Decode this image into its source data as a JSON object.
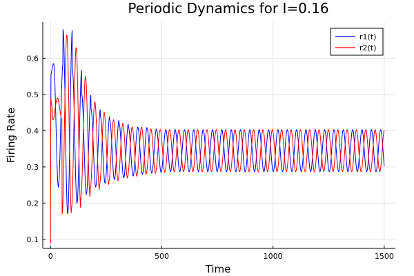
{
  "chart_data": {
    "type": "line",
    "title": "Periodic Dynamics for I=0.16",
    "xlabel": "Time",
    "ylabel": "Firing Rate",
    "xlim": [
      -35,
      1550
    ],
    "ylim": [
      0.075,
      0.7
    ],
    "xticks": [
      0,
      500,
      1000,
      1500
    ],
    "yticks": [
      0.1,
      0.2,
      0.3,
      0.4,
      0.5,
      0.6
    ],
    "xtick_labels": [
      "0",
      "500",
      "1000",
      "1500"
    ],
    "ytick_labels": [
      "0.1",
      "0.2",
      "0.3",
      "0.4",
      "0.5",
      "0.6"
    ],
    "grid": true,
    "legend_position": "top-right",
    "x_end": 1500,
    "period": 42,
    "series": [
      {
        "name": "r1(t)",
        "color": "#0000ff",
        "start_value": 0.3,
        "first_peak": 0.585,
        "equilibrium": 0.345,
        "steady_amplitude": 0.058,
        "peak_maxima": [
          0.585,
          0.68,
          0.57,
          0.5,
          0.46,
          0.44,
          0.43,
          0.42,
          0.41,
          0.41,
          0.405,
          0.403,
          0.403
        ],
        "trough_minima": [
          0.245,
          0.17,
          0.2,
          0.225,
          0.245,
          0.255,
          0.265,
          0.27,
          0.275,
          0.28,
          0.283,
          0.285,
          0.287
        ]
      },
      {
        "name": "r2(t)",
        "color": "#ff0000",
        "start_value": 0.09,
        "first_peak": 0.49,
        "equilibrium": 0.345,
        "steady_amplitude": 0.058,
        "peak_maxima": [
          0.49,
          0.665,
          0.63,
          0.55,
          0.48,
          0.45,
          0.43,
          0.42,
          0.41,
          0.41,
          0.405,
          0.403,
          0.403
        ],
        "trough_minima": [
          0.43,
          0.17,
          0.185,
          0.215,
          0.235,
          0.25,
          0.26,
          0.268,
          0.273,
          0.278,
          0.282,
          0.285,
          0.287
        ]
      }
    ]
  }
}
